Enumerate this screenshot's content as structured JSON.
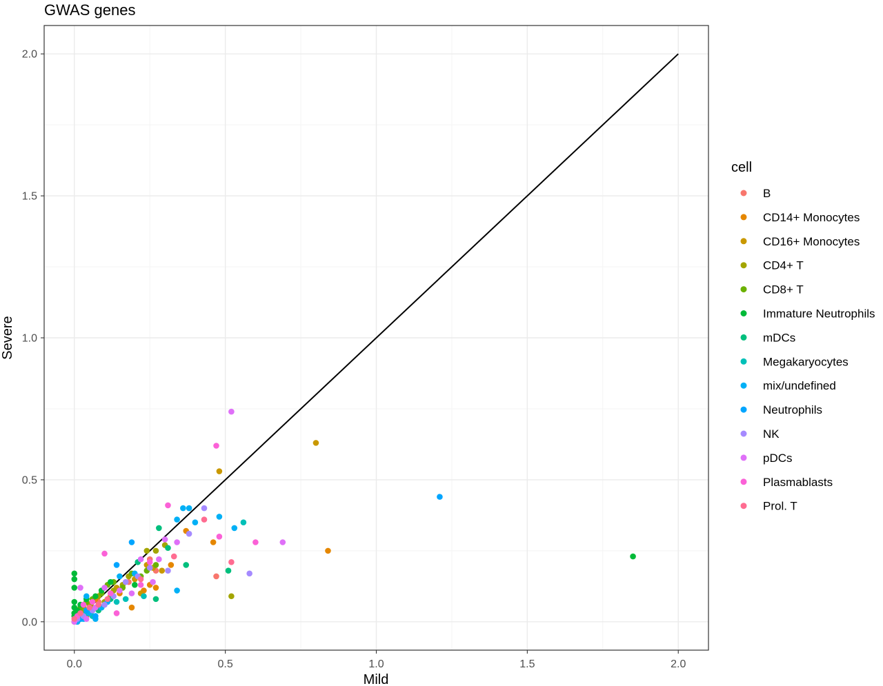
{
  "chart_data": {
    "type": "scatter",
    "title": "GWAS genes",
    "xlabel": "Mild",
    "ylabel": "Severe",
    "xlim": [
      -0.1,
      2.1
    ],
    "ylim": [
      -0.1,
      2.1
    ],
    "x_ticks": [
      "0.0",
      "0.5",
      "1.0",
      "1.5",
      "2.0"
    ],
    "y_ticks": [
      "0.0",
      "0.5",
      "1.0",
      "1.5",
      "2.0"
    ],
    "x_tick_values": [
      0,
      0.5,
      1,
      1.5,
      2
    ],
    "y_tick_values": [
      0,
      0.5,
      1,
      1.5,
      2
    ],
    "grid": true,
    "reference_line": {
      "x": [
        0,
        2
      ],
      "y": [
        0,
        2
      ],
      "color": "#000000"
    },
    "legend": {
      "title": "cell",
      "position": "right"
    },
    "series": [
      {
        "name": "B",
        "color": "#F8766D",
        "points": [
          [
            0.01,
            0.01
          ],
          [
            0.03,
            0.03
          ],
          [
            0.05,
            0.04
          ],
          [
            0.08,
            0.07
          ],
          [
            0.12,
            0.1
          ],
          [
            0.18,
            0.14
          ],
          [
            0.25,
            0.22
          ],
          [
            0.27,
            0.18
          ],
          [
            0.47,
            0.16
          ]
        ]
      },
      {
        "name": "CD14+ Monocytes",
        "color": "#E58700",
        "points": [
          [
            0.0,
            0.0
          ],
          [
            0.02,
            0.02
          ],
          [
            0.03,
            0.05
          ],
          [
            0.04,
            0.03
          ],
          [
            0.05,
            0.06
          ],
          [
            0.06,
            0.04
          ],
          [
            0.07,
            0.08
          ],
          [
            0.09,
            0.05
          ],
          [
            0.12,
            0.09
          ],
          [
            0.15,
            0.1
          ],
          [
            0.19,
            0.05
          ],
          [
            0.23,
            0.11
          ],
          [
            0.25,
            0.13
          ],
          [
            0.27,
            0.12
          ],
          [
            0.32,
            0.2
          ],
          [
            0.37,
            0.32
          ],
          [
            0.46,
            0.28
          ],
          [
            0.84,
            0.25
          ]
        ]
      },
      {
        "name": "CD16+ Monocytes",
        "color": "#C99800",
        "points": [
          [
            0.01,
            0.0
          ],
          [
            0.02,
            0.03
          ],
          [
            0.04,
            0.02
          ],
          [
            0.06,
            0.05
          ],
          [
            0.08,
            0.06
          ],
          [
            0.11,
            0.08
          ],
          [
            0.14,
            0.12
          ],
          [
            0.2,
            0.15
          ],
          [
            0.22,
            0.1
          ],
          [
            0.24,
            0.2
          ],
          [
            0.26,
            0.19
          ],
          [
            0.29,
            0.18
          ],
          [
            0.48,
            0.53
          ],
          [
            0.8,
            0.63
          ]
        ]
      },
      {
        "name": "CD4+ T",
        "color": "#A3A500",
        "points": [
          [
            0.01,
            0.02
          ],
          [
            0.03,
            0.04
          ],
          [
            0.05,
            0.06
          ],
          [
            0.08,
            0.09
          ],
          [
            0.1,
            0.07
          ],
          [
            0.13,
            0.11
          ],
          [
            0.16,
            0.13
          ],
          [
            0.18,
            0.16
          ],
          [
            0.24,
            0.25
          ],
          [
            0.27,
            0.25
          ],
          [
            0.3,
            0.27
          ],
          [
            0.52,
            0.09
          ]
        ]
      },
      {
        "name": "CD8+ T",
        "color": "#6BB100",
        "points": [
          [
            0.0,
            0.03
          ],
          [
            0.02,
            0.05
          ],
          [
            0.04,
            0.07
          ],
          [
            0.06,
            0.08
          ],
          [
            0.09,
            0.1
          ],
          [
            0.11,
            0.13
          ],
          [
            0.13,
            0.14
          ],
          [
            0.16,
            0.12
          ],
          [
            0.19,
            0.17
          ],
          [
            0.22,
            0.16
          ],
          [
            0.24,
            0.18
          ],
          [
            0.27,
            0.2
          ]
        ]
      },
      {
        "name": "Immature Neutrophils",
        "color": "#00BA38",
        "points": [
          [
            0.0,
            0.17
          ],
          [
            0.0,
            0.15
          ],
          [
            0.0,
            0.12
          ],
          [
            0.0,
            0.07
          ],
          [
            0.0,
            0.05
          ],
          [
            0.0,
            0.03
          ],
          [
            0.0,
            0.02
          ],
          [
            0.01,
            0.04
          ],
          [
            0.02,
            0.06
          ],
          [
            0.04,
            0.08
          ],
          [
            0.07,
            0.09
          ],
          [
            0.09,
            0.11
          ],
          [
            0.12,
            0.14
          ],
          [
            0.2,
            0.13
          ],
          [
            1.85,
            0.23
          ]
        ]
      },
      {
        "name": "mDCs",
        "color": "#00BF7D",
        "points": [
          [
            0.01,
            0.01
          ],
          [
            0.03,
            0.02
          ],
          [
            0.05,
            0.05
          ],
          [
            0.08,
            0.04
          ],
          [
            0.12,
            0.08
          ],
          [
            0.21,
            0.21
          ],
          [
            0.27,
            0.08
          ],
          [
            0.28,
            0.33
          ],
          [
            0.31,
            0.26
          ],
          [
            0.37,
            0.2
          ],
          [
            0.51,
            0.18
          ]
        ]
      },
      {
        "name": "Megakaryocytes",
        "color": "#00C0B8",
        "points": [
          [
            0.02,
            0.01
          ],
          [
            0.04,
            0.03
          ],
          [
            0.06,
            0.02
          ],
          [
            0.1,
            0.06
          ],
          [
            0.14,
            0.07
          ],
          [
            0.17,
            0.08
          ],
          [
            0.23,
            0.09
          ],
          [
            0.56,
            0.35
          ]
        ]
      },
      {
        "name": "mix/undefined",
        "color": "#00B0F6",
        "points": [
          [
            0.01,
            0.0
          ],
          [
            0.03,
            0.01
          ],
          [
            0.05,
            0.03
          ],
          [
            0.07,
            0.01
          ],
          [
            0.09,
            0.05
          ],
          [
            0.11,
            0.07
          ],
          [
            0.15,
            0.16
          ],
          [
            0.2,
            0.17
          ],
          [
            0.34,
            0.36
          ],
          [
            0.36,
            0.4
          ],
          [
            0.38,
            0.4
          ],
          [
            0.4,
            0.35
          ],
          [
            0.48,
            0.37
          ],
          [
            0.53,
            0.33
          ],
          [
            0.34,
            0.11
          ],
          [
            0.04,
            0.09
          ]
        ]
      },
      {
        "name": "Neutrophils",
        "color": "#00A5FF",
        "points": [
          [
            0.02,
            0.01
          ],
          [
            0.04,
            0.04
          ],
          [
            0.07,
            0.02
          ],
          [
            0.14,
            0.2
          ],
          [
            0.19,
            0.28
          ],
          [
            1.21,
            0.44
          ]
        ]
      },
      {
        "name": "NK",
        "color": "#A58AFF",
        "points": [
          [
            0.01,
            0.01
          ],
          [
            0.03,
            0.02
          ],
          [
            0.06,
            0.04
          ],
          [
            0.1,
            0.06
          ],
          [
            0.13,
            0.09
          ],
          [
            0.17,
            0.14
          ],
          [
            0.21,
            0.16
          ],
          [
            0.25,
            0.19
          ],
          [
            0.31,
            0.18
          ],
          [
            0.38,
            0.31
          ],
          [
            0.43,
            0.4
          ],
          [
            0.58,
            0.17
          ]
        ]
      },
      {
        "name": "pDCs",
        "color": "#DF70F8",
        "points": [
          [
            0.0,
            0.0
          ],
          [
            0.02,
            0.12
          ],
          [
            0.04,
            0.01
          ],
          [
            0.07,
            0.05
          ],
          [
            0.1,
            0.12
          ],
          [
            0.15,
            0.11
          ],
          [
            0.19,
            0.1
          ],
          [
            0.22,
            0.22
          ],
          [
            0.26,
            0.14
          ],
          [
            0.28,
            0.22
          ],
          [
            0.3,
            0.29
          ],
          [
            0.52,
            0.74
          ],
          [
            0.69,
            0.28
          ],
          [
            0.34,
            0.28
          ]
        ]
      },
      {
        "name": "Plasmablasts",
        "color": "#FB61D7",
        "points": [
          [
            0.01,
            0.02
          ],
          [
            0.03,
            0.06
          ],
          [
            0.06,
            0.07
          ],
          [
            0.1,
            0.24
          ],
          [
            0.12,
            0.1
          ],
          [
            0.14,
            0.03
          ],
          [
            0.22,
            0.13
          ],
          [
            0.25,
            0.21
          ],
          [
            0.31,
            0.41
          ],
          [
            0.47,
            0.62
          ],
          [
            0.48,
            0.3
          ],
          [
            0.6,
            0.28
          ]
        ]
      },
      {
        "name": "Prol. T",
        "color": "#FF6C91",
        "points": [
          [
            0.0,
            0.01
          ],
          [
            0.02,
            0.03
          ],
          [
            0.05,
            0.05
          ],
          [
            0.08,
            0.06
          ],
          [
            0.11,
            0.08
          ],
          [
            0.22,
            0.15
          ],
          [
            0.33,
            0.23
          ],
          [
            0.43,
            0.36
          ],
          [
            0.52,
            0.21
          ]
        ]
      }
    ]
  }
}
